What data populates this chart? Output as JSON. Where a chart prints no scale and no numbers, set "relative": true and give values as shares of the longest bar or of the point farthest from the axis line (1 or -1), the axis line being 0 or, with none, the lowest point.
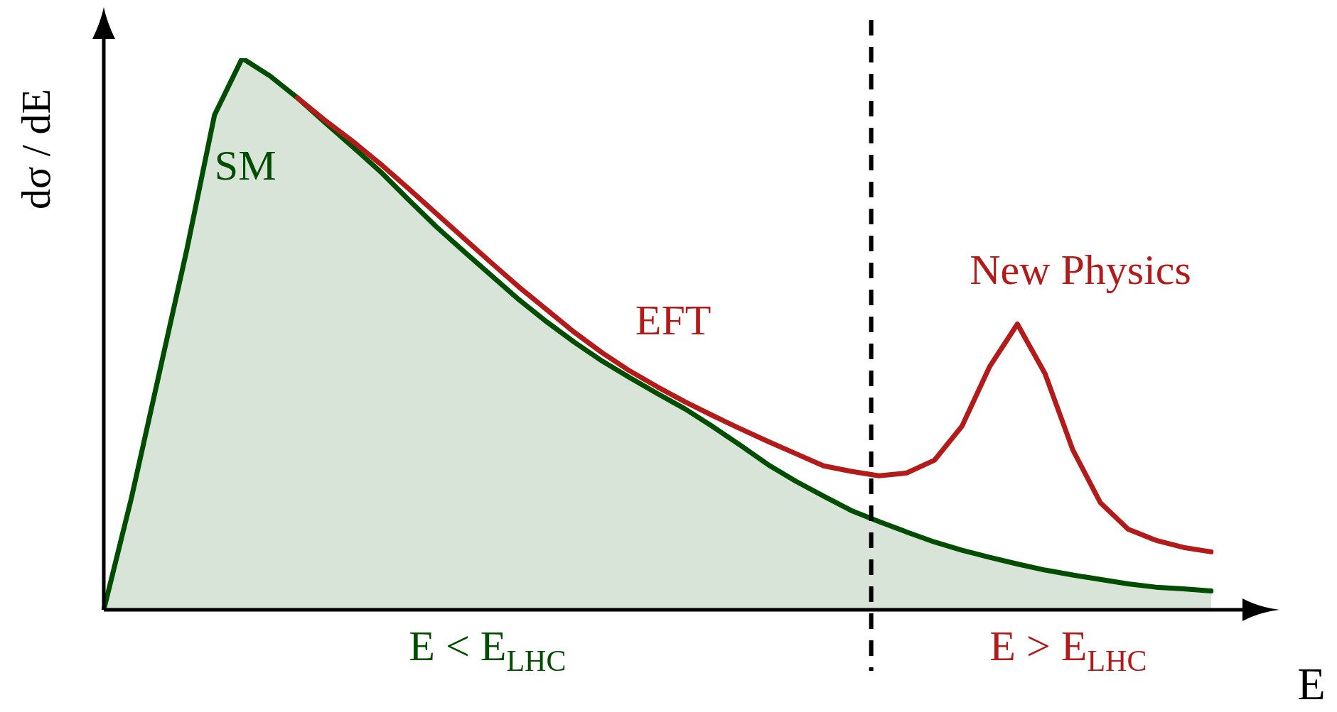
{
  "chart_data": {
    "type": "line",
    "relative": true,
    "xlabel": "E",
    "ylabel": "dσ / dE",
    "legend": false,
    "categories": [
      null,
      null,
      null,
      null,
      null,
      null,
      null,
      null,
      null,
      null,
      null,
      null,
      null,
      null,
      null,
      null,
      null,
      null,
      null,
      null,
      null,
      null,
      null,
      null,
      null,
      null,
      null,
      null,
      null,
      null,
      null,
      null,
      null,
      null,
      null,
      null,
      null,
      null,
      null,
      null,
      null
    ],
    "series": [
      {
        "name": "SM",
        "type": "area",
        "color": "#004d00",
        "values": [
          0,
          0.203,
          0.428,
          0.653,
          0.897,
          1,
          0.968,
          0.928,
          0.883,
          0.839,
          0.794,
          0.744,
          0.695,
          0.65,
          0.606,
          0.562,
          0.522,
          0.485,
          0.451,
          0.421,
          0.392,
          0.364,
          0.332,
          0.298,
          0.263,
          0.233,
          0.206,
          0.18,
          0.16,
          0.141,
          0.123,
          0.108,
          0.095,
          0.083,
          0.072,
          0.063,
          0.055,
          0.047,
          0.041,
          0.038,
          0.034
        ]
      },
      {
        "name": "EFT",
        "type": "line",
        "color": "#b31b1b",
        "values": [
          null,
          null,
          null,
          null,
          null,
          null,
          null,
          0.928,
          0.887,
          0.849,
          0.808,
          0.764,
          0.719,
          0.674,
          0.629,
          0.585,
          0.544,
          0.503,
          0.466,
          0.433,
          0.404,
          0.377,
          0.352,
          0.328,
          0.305,
          0.283,
          0.261,
          0.251,
          0.243,
          0.248,
          0.271,
          0.333,
          0.441,
          0.518,
          0.428,
          0.29,
          0.194,
          0.146,
          0.126,
          0.113,
          0.105
        ]
      }
    ],
    "annotations": [
      "E < E$_{LHC}$",
      "E > E$_{LHC}$",
      "New Physics"
    ]
  }
}
